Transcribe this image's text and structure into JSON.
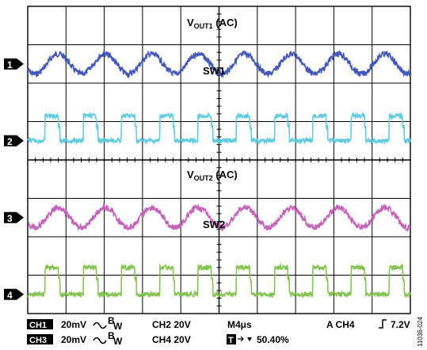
{
  "chart_data": {
    "type": "line",
    "grid": true,
    "grid_divisions": {
      "x": 10,
      "y": 8
    },
    "annotations": [
      {
        "id": "vout1",
        "main": "V",
        "sub": "OUT1",
        "tail": " (AC)"
      },
      {
        "id": "sw1",
        "text": "SW1"
      },
      {
        "id": "vout2",
        "main": "V",
        "sub": "OUT2",
        "tail": " (AC)"
      },
      {
        "id": "sw2",
        "text": "SW2"
      }
    ],
    "series": [
      {
        "marker": "1",
        "color": "#3a4fb5",
        "kind": "sine",
        "cycles": 8.2,
        "amplitude_div": 0.26,
        "level_div": 1.5,
        "noise_div": 0.08
      },
      {
        "marker": "2",
        "color": "#5bc8dc",
        "kind": "pulse",
        "cycles": 10,
        "duty": 0.35,
        "level_div": 3.5,
        "high_div": 3.6,
        "noise_div": 0.06
      },
      {
        "marker": "3",
        "color": "#c05cb4",
        "kind": "sine",
        "cycles": 8.2,
        "amplitude_div": 0.26,
        "level_div": 5.5,
        "noise_div": 0.08
      },
      {
        "marker": "4",
        "color": "#7ec04a",
        "kind": "pulse",
        "cycles": 10,
        "duty": 0.35,
        "level_div": 7.5,
        "high_div": 3.9,
        "noise_div": 0.06
      }
    ],
    "settings": {
      "row1": {
        "ch_badge": "CH1",
        "ch_scale": "20mV",
        "bw": "B",
        "bw_sub": "W",
        "ch2": "CH2 20V",
        "timebase": "M4μs",
        "trigger": "A  CH4",
        "trigger_level": "7.2V"
      },
      "row2": {
        "ch_badge": "CH3",
        "ch_scale": "20mV",
        "bw": "B",
        "bw_sub": "W",
        "ch4": "CH4 20V",
        "t_badge": "T",
        "position": "50.40%"
      }
    },
    "figure_id": "11036-024"
  }
}
